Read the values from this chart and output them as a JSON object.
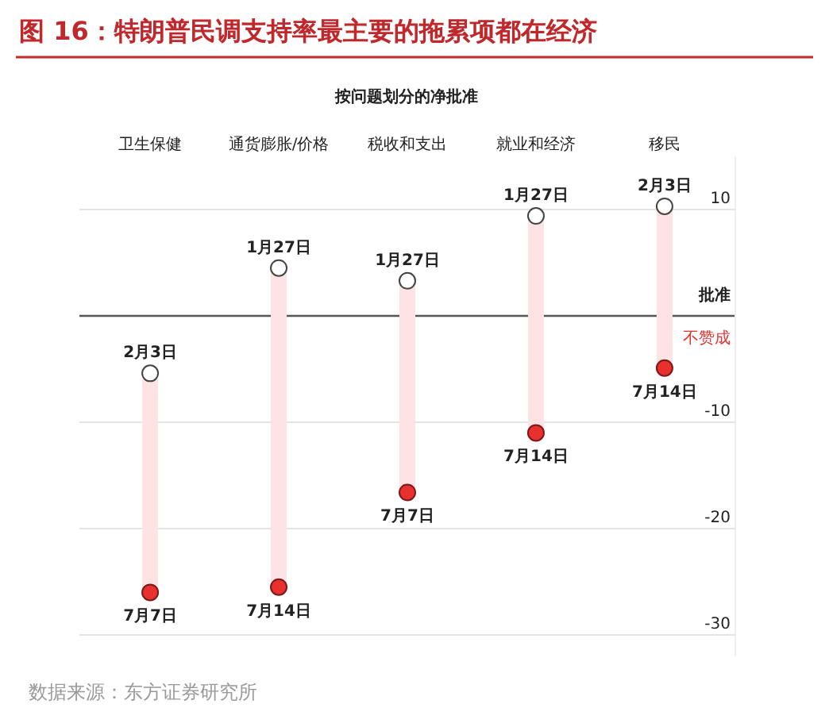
{
  "chart_data": {
    "type": "bar",
    "title": "图 16：特朗普民调支持率最主要的拖累项都在经济",
    "subtitle": "按问题划分的净批准",
    "categories": [
      "卫生保健",
      "通货膨胀/价格",
      "税收和支出",
      "就业和经济",
      "移民"
    ],
    "base": [
      -26,
      -25.5,
      -16.6,
      -11,
      -4.9
    ],
    "values": [
      20.6,
      30,
      19.9,
      20.4,
      15.2
    ],
    "color": "#fde3e3",
    "series": [
      {
        "type": "scatter",
        "color": "#ffffff",
        "values": [
          -5.4,
          4.5,
          3.3,
          9.4,
          10.3
        ],
        "value_labels": [
          "2月3日",
          "1月27日",
          "1月27日",
          "1月27日",
          "2月3日"
        ]
      },
      {
        "type": "scatter",
        "color": "#e8302e",
        "values": [
          -26,
          -25.5,
          -16.6,
          -11,
          -4.9
        ],
        "value_labels": [
          "7月7日",
          "7月14日",
          "7月7日",
          "7月14日",
          "7月14日"
        ]
      }
    ],
    "ylim": [
      -32,
      15
    ],
    "yticks": [
      10,
      -10,
      -20,
      -30
    ],
    "grid": "y",
    "marker": "circle",
    "ref_lines": [
      {
        "axis": "y",
        "value": 0,
        "label": "批准",
        "color": "#555555"
      }
    ],
    "annotations": [
      "不赞成",
      "数据来源：东方证券研究所"
    ]
  }
}
